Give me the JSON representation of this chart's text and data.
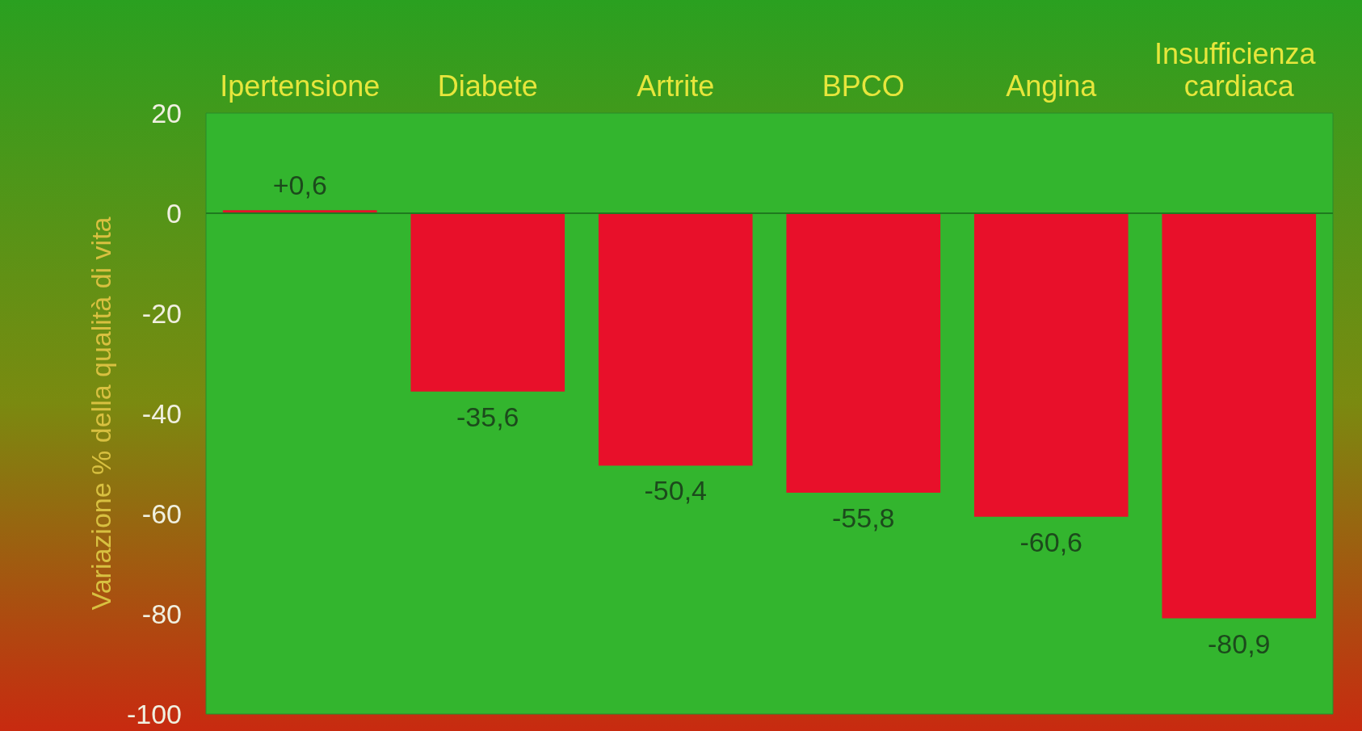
{
  "chart_data": {
    "type": "bar",
    "ylabel": "Variazione % della qualità di vita",
    "categories": [
      "Ipertensione",
      "Diabete",
      "Artrite",
      "BPCO",
      "Angina",
      "Insufficienza cardiaca"
    ],
    "values": [
      0.6,
      -35.6,
      -50.4,
      -55.8,
      -60.6,
      -80.9
    ],
    "value_labels": [
      "+0,6",
      "-35,6",
      "-50,4",
      "-55,8",
      "-60,6",
      "-80,9"
    ],
    "color": "#e8102a",
    "ylim": [
      -100,
      20
    ],
    "yticks": [
      -100,
      -80,
      -60,
      -40,
      -20,
      0,
      20
    ],
    "ref_lines": [
      {
        "axis": "y",
        "value": 0,
        "color": "#1f7a1f"
      }
    ]
  }
}
